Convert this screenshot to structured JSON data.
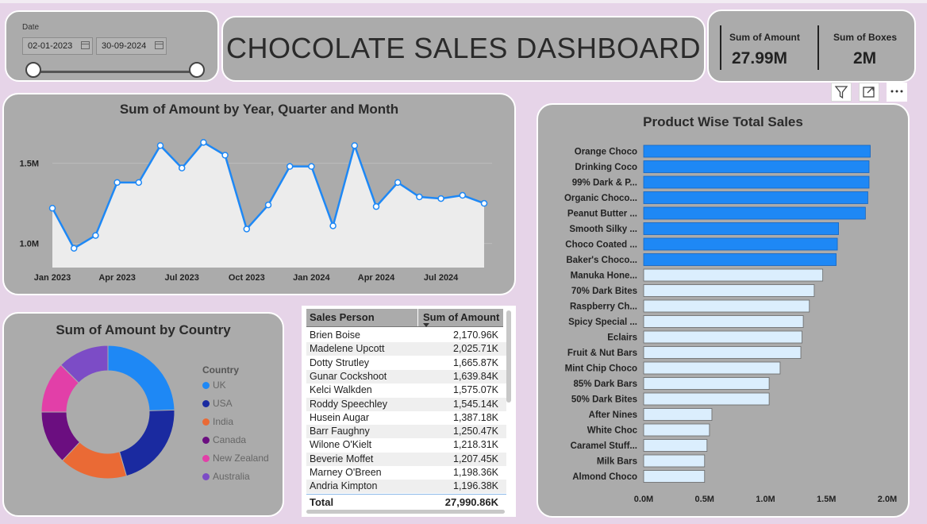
{
  "date_filter": {
    "label": "Date",
    "start": "02-01-2023",
    "end": "30-09-2024"
  },
  "title": "CHOCOLATE SALES DASHBOARD",
  "kpis": [
    {
      "label": "Sum of Amount",
      "value": "27.99M"
    },
    {
      "label": "Sum of Boxes",
      "value": "2M"
    }
  ],
  "toolbar": {
    "icons": [
      "filter-icon",
      "focus-mode-icon",
      "more-options-icon"
    ]
  },
  "line_chart": {
    "title": "Sum of Amount by Year, Quarter and Month",
    "x_ticks": [
      "Jan 2023",
      "Apr 2023",
      "Jul 2023",
      "Oct 2023",
      "Jan 2024",
      "Apr 2024",
      "Jul 2024"
    ],
    "y_ticks": [
      "1.5M",
      "1.0M"
    ]
  },
  "bar_chart": {
    "title": "Product Wise Total Sales",
    "x_ticks": [
      "0.0M",
      "0.5M",
      "1.0M",
      "1.5M",
      "2.0M"
    ],
    "selected_color": "#1e88f5",
    "other_color": "#dbeefd"
  },
  "pie_chart": {
    "title": "Sum of Amount by Country",
    "legend_title": "Country"
  },
  "table": {
    "headers": [
      "Sales Person",
      "Sum of Amount"
    ],
    "rows": [
      [
        "Brien Boise",
        "2,170.96K"
      ],
      [
        "Madelene Upcott",
        "2,025.71K"
      ],
      [
        "Dotty Strutley",
        "1,665.87K"
      ],
      [
        "Gunar Cockshoot",
        "1,639.84K"
      ],
      [
        "Kelci Walkden",
        "1,575.07K"
      ],
      [
        "Roddy Speechley",
        "1,545.14K"
      ],
      [
        "Husein Augar",
        "1,387.18K"
      ],
      [
        "Barr Faughny",
        "1,250.47K"
      ],
      [
        "Wilone O'Kielt",
        "1,218.31K"
      ],
      [
        "Beverie Moffet",
        "1,207.45K"
      ],
      [
        "Marney O'Breen",
        "1,198.36K"
      ],
      [
        "Andria Kimpton",
        "1,196.38K"
      ]
    ],
    "total_label": "Total",
    "total_value": "27,990.86K"
  },
  "chart_data": [
    {
      "type": "area",
      "title": "Sum of Amount by Year, Quarter and Month",
      "x": [
        "Jan 2023",
        "Feb 2023",
        "Mar 2023",
        "Apr 2023",
        "May 2023",
        "Jun 2023",
        "Jul 2023",
        "Aug 2023",
        "Sep 2023",
        "Oct 2023",
        "Nov 2023",
        "Dec 2023",
        "Jan 2024",
        "Feb 2024",
        "Mar 2024",
        "Apr 2024",
        "May 2024",
        "Jun 2024",
        "Jul 2024",
        "Aug 2024",
        "Sep 2024"
      ],
      "values": [
        1.22,
        0.97,
        1.05,
        1.38,
        1.38,
        1.61,
        1.47,
        1.63,
        1.55,
        1.09,
        1.24,
        1.48,
        1.48,
        1.11,
        1.61,
        1.23,
        1.38,
        1.29,
        1.28,
        1.3,
        1.25
      ],
      "ylim": [
        0.85,
        1.78
      ],
      "unit": "M",
      "color": "#1e88f5"
    },
    {
      "type": "bar",
      "title": "Product Wise Total Sales",
      "categories": [
        "Orange Choco",
        "Drinking Coco",
        "99% Dark & P...",
        "Organic Choco...",
        "Peanut Butter ...",
        "Smooth Silky ...",
        "Choco Coated ...",
        "Baker's Choco...",
        "Manuka Hone...",
        "70% Dark Bites",
        "Raspberry Ch...",
        "Spicy Special ...",
        "Eclairs",
        "Fruit & Nut Bars",
        "Mint Chip Choco",
        "85% Dark Bars",
        "50% Dark Bites",
        "After Nines",
        "White Choc",
        "Caramel Stuff...",
        "Milk Bars",
        "Almond Choco"
      ],
      "values": [
        1.86,
        1.85,
        1.85,
        1.84,
        1.82,
        1.6,
        1.59,
        1.58,
        1.47,
        1.4,
        1.36,
        1.31,
        1.3,
        1.29,
        1.12,
        1.03,
        1.03,
        0.56,
        0.54,
        0.52,
        0.5,
        0.5
      ],
      "selected_count": 8,
      "xlim": [
        0,
        2.1
      ],
      "unit": "M"
    },
    {
      "type": "pie",
      "title": "Sum of Amount by Country",
      "categories": [
        "UK",
        "USA",
        "India",
        "Canada",
        "New Zealand",
        "Australia"
      ],
      "values": [
        24.5,
        21.0,
        16.5,
        13.0,
        12.5,
        12.5
      ],
      "colors": [
        "#1e88f5",
        "#1a2aa0",
        "#ea6a35",
        "#6b0e80",
        "#e23fa8",
        "#7c4cc6"
      ],
      "donut": true
    }
  ]
}
